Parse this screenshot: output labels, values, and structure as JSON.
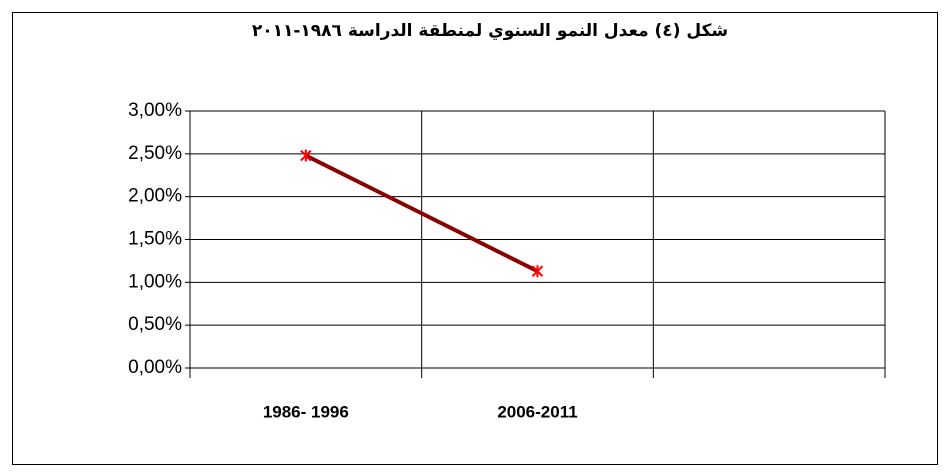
{
  "chart_data": {
    "type": "line",
    "title": "شكل (٤) معدل النمو السنوي لمنطقة الدراسة ١٩٨٦-٢٠١١",
    "categories": [
      "1986- 1996",
      "2006-2011",
      null
    ],
    "series": [
      {
        "color": "#8b0000",
        "marker_color": "#ff0000",
        "values": [
          2.48,
          1.13,
          null
        ]
      }
    ],
    "ylim": [
      0,
      3
    ],
    "yticks": [
      {
        "value": 0,
        "label": "0,00%"
      },
      {
        "value": 0.5,
        "label": "0,50%"
      },
      {
        "value": 1,
        "label": "1,00%"
      },
      {
        "value": 1.5,
        "label": "1,50%"
      },
      {
        "value": 2,
        "label": "2,00%"
      },
      {
        "value": 2.5,
        "label": "2,50%"
      },
      {
        "value": 3,
        "label": "3,00%"
      }
    ],
    "grid": true
  }
}
